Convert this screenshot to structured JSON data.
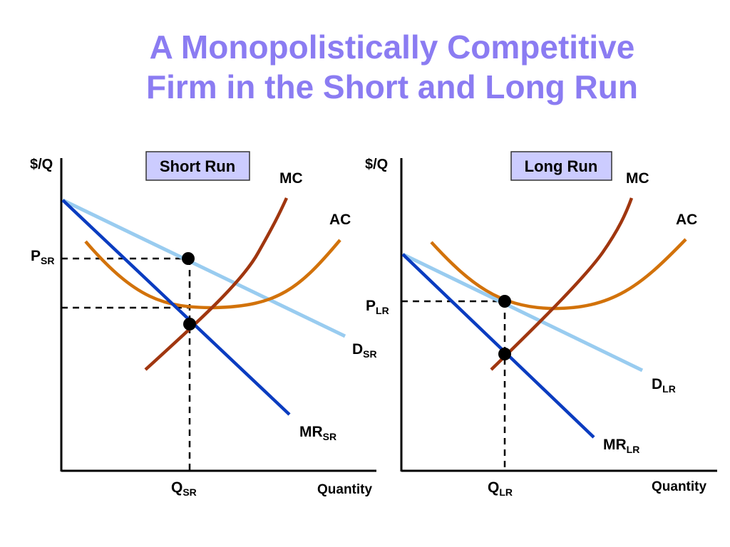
{
  "title": {
    "line1": "A Monopolistically Competitive",
    "line2": "Firm in the Short and Long Run"
  },
  "colors": {
    "title": "#8b7cf2",
    "mc": "#a0360f",
    "ac": "#d2720a",
    "demand": "#99ccf0",
    "mr": "#0a3cc0",
    "box_fill": "#ccccff"
  },
  "panels": {
    "short_run": {
      "box_label": "Short Run",
      "y_axis_label": "$/Q",
      "x_axis_label": "Quantity",
      "mc_label": "MC",
      "ac_label": "AC",
      "demand_label": {
        "main": "D",
        "sub": "SR"
      },
      "mr_label": {
        "main": "MR",
        "sub": "SR"
      },
      "price_label": {
        "main": "P",
        "sub": "SR"
      },
      "quantity_label": {
        "main": "Q",
        "sub": "SR"
      }
    },
    "long_run": {
      "box_label": "Long Run",
      "y_axis_label": "$/Q",
      "x_axis_label": "Quantity",
      "mc_label": "MC",
      "ac_label": "AC",
      "demand_label": {
        "main": "D",
        "sub": "LR"
      },
      "mr_label": {
        "main": "MR",
        "sub": "LR"
      },
      "price_label": {
        "main": "P",
        "sub": "LR"
      },
      "quantity_label": {
        "main": "Q",
        "sub": "LR"
      }
    }
  }
}
